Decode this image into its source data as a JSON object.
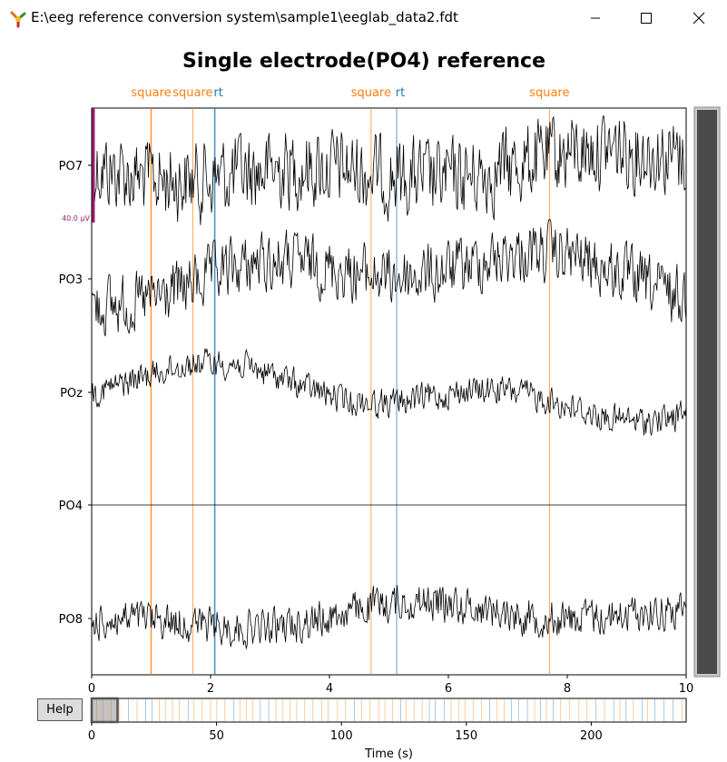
{
  "window": {
    "title": "E:\\eeg reference conversion system\\sample1\\eeglab_data2.fdt",
    "controls": [
      "minimize-icon",
      "maximize-icon",
      "close-icon"
    ]
  },
  "help_button": {
    "label": "Help"
  },
  "colors": {
    "trace": "#000000",
    "event_square": "#ff7f0e",
    "event_rt": "#1f77b4",
    "scale_bar": "#a02070",
    "scrollbar": "#4a4a4a"
  },
  "chart_data": [
    {
      "type": "line",
      "title": "Single electrode(PO4) reference",
      "xlim": [
        0,
        10
      ],
      "xticks": [
        0,
        2,
        4,
        6,
        8,
        10
      ],
      "channels": [
        "PO7",
        "PO3",
        "POz",
        "PO4",
        "PO8"
      ],
      "scale_label": "40.0 µV",
      "events": [
        {
          "t": 1.0,
          "type": "square"
        },
        {
          "t": 1.7,
          "type": "square"
        },
        {
          "t": 2.07,
          "type": "rt"
        },
        {
          "t": 4.7,
          "type": "square"
        },
        {
          "t": 5.13,
          "type": "rt"
        },
        {
          "t": 7.7,
          "type": "square"
        }
      ]
    },
    {
      "type": "line",
      "xlabel": "Time (s)",
      "xlim": [
        0,
        238
      ],
      "xticks": [
        0,
        50,
        100,
        150,
        200
      ],
      "view_window": [
        0,
        10
      ]
    }
  ]
}
